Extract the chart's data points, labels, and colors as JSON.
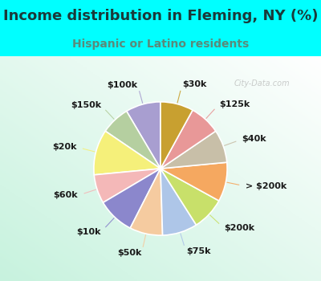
{
  "title": "Income distribution in Fleming, NY (%)",
  "subtitle": "Hispanic or Latino residents",
  "title_color": "#1a3a3a",
  "subtitle_color": "#5a8a7a",
  "background_cyan": "#00ffff",
  "labels": [
    "$100k",
    "$150k",
    "$20k",
    "$60k",
    "$10k",
    "$50k",
    "$75k",
    "$200k",
    "> $200k",
    "$40k",
    "$125k",
    "$30k"
  ],
  "sizes": [
    8.5,
    7.0,
    11.0,
    7.0,
    9.0,
    8.0,
    8.5,
    8.0,
    9.5,
    8.0,
    7.5,
    8.0
  ],
  "colors": [
    "#a89ed0",
    "#b5cfa0",
    "#f5f07a",
    "#f4b8b8",
    "#8b87cc",
    "#f5cba0",
    "#aec6e8",
    "#c8e06a",
    "#f5a860",
    "#c8bfa8",
    "#e89898",
    "#c8a030"
  ],
  "wedge_edge_color": "#ffffff",
  "wedge_linewidth": 1.2,
  "label_fontsize": 8.0,
  "label_fontweight": "bold",
  "label_color": "#1a1a1a",
  "figsize": [
    4.0,
    3.5
  ],
  "dpi": 100,
  "title_fontsize": 13,
  "subtitle_fontsize": 10
}
